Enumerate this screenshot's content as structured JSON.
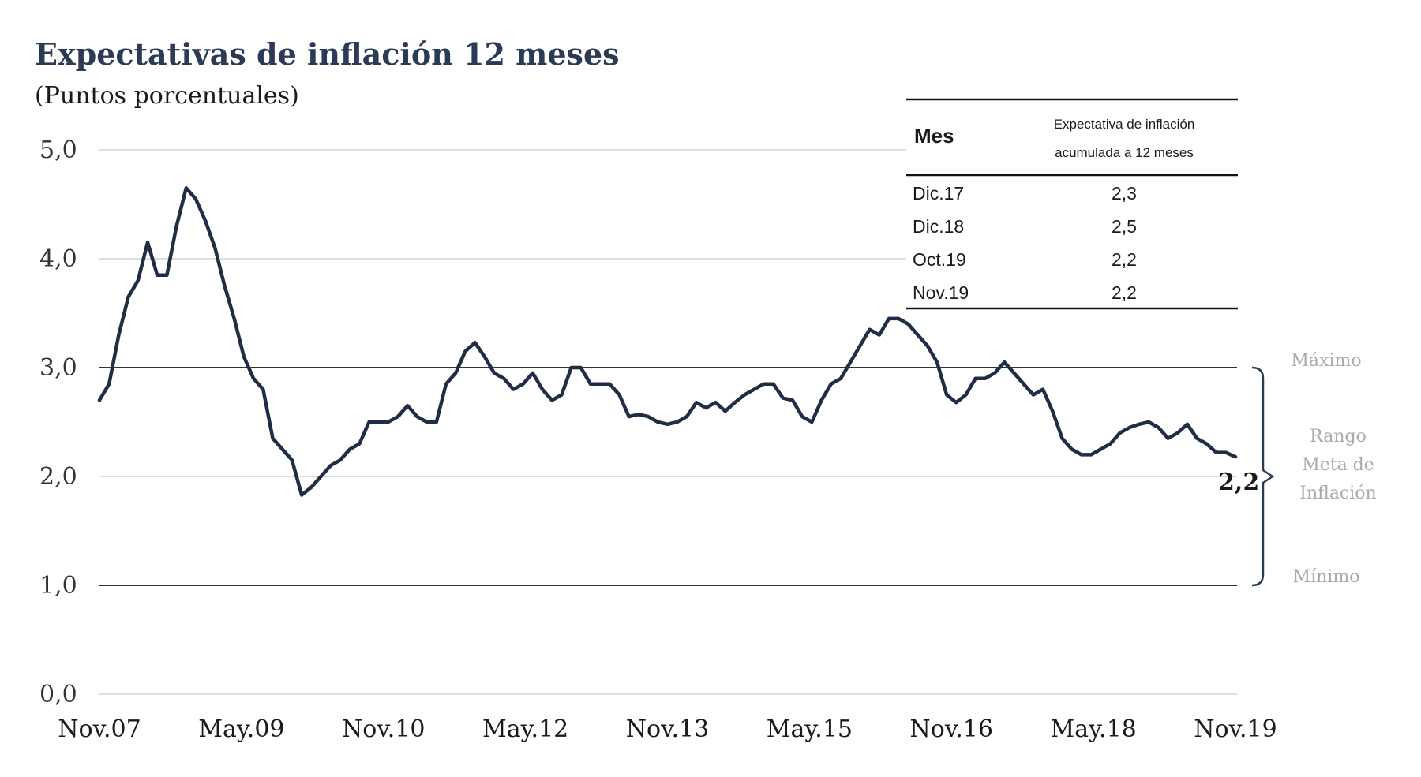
{
  "chart_data": {
    "type": "line",
    "title": "Expectativas de inflación 12 meses",
    "subtitle": "(Puntos porcentuales)",
    "ylim": [
      0,
      5
    ],
    "yticks": [
      "0,0",
      "1,0",
      "2,0",
      "3,0",
      "4,0",
      "5,0"
    ],
    "x_tick_labels": [
      "Nov.07",
      "May.09",
      "Nov.10",
      "May.12",
      "Nov.13",
      "May.15",
      "Nov.16",
      "May.18",
      "Nov.19"
    ],
    "x_start": "Nov.07",
    "x_end": "Nov.19",
    "series": [
      {
        "color": "#1f2d45",
        "values": [
          2.7,
          2.85,
          3.3,
          3.65,
          3.8,
          4.15,
          3.85,
          3.85,
          4.3,
          4.65,
          4.55,
          4.35,
          4.1,
          3.75,
          3.45,
          3.1,
          2.9,
          2.8,
          2.35,
          2.25,
          2.15,
          1.83,
          1.9,
          2.0,
          2.1,
          2.15,
          2.25,
          2.3,
          2.5,
          2.5,
          2.5,
          2.55,
          2.65,
          2.55,
          2.5,
          2.5,
          2.85,
          2.95,
          3.15,
          3.23,
          3.1,
          2.95,
          2.9,
          2.8,
          2.85,
          2.95,
          2.8,
          2.7,
          2.75,
          3.0,
          3.0,
          2.85,
          2.85,
          2.85,
          2.75,
          2.55,
          2.57,
          2.55,
          2.5,
          2.48,
          2.5,
          2.55,
          2.68,
          2.63,
          2.68,
          2.6,
          2.68,
          2.75,
          2.8,
          2.85,
          2.85,
          2.72,
          2.7,
          2.55,
          2.5,
          2.7,
          2.85,
          2.9,
          3.05,
          3.2,
          3.35,
          3.3,
          3.45,
          3.45,
          3.4,
          3.3,
          3.2,
          3.05,
          2.75,
          2.68,
          2.75,
          2.9,
          2.9,
          2.95,
          3.05,
          2.95,
          2.85,
          2.75,
          2.8,
          2.6,
          2.35,
          2.25,
          2.2,
          2.2,
          2.25,
          2.3,
          2.4,
          2.45,
          2.48,
          2.5,
          2.45,
          2.35,
          2.4,
          2.48,
          2.35,
          2.3,
          2.22,
          2.22,
          2.18
        ]
      }
    ],
    "reference_lines": [
      {
        "label": "Máximo",
        "value": 3.0
      },
      {
        "label": "Mínimo",
        "value": 1.0
      }
    ],
    "range_label": [
      "Rango",
      "Meta de",
      "Inflación"
    ],
    "end_value_label": "2,2",
    "grid": true
  },
  "table": {
    "headers": {
      "month": "Mes",
      "expectation_line1": "Expectativa de inflación",
      "expectation_line2": "acumulada a 12 meses"
    },
    "rows": [
      {
        "month": "Dic.17",
        "value": "2,3"
      },
      {
        "month": "Dic.18",
        "value": "2,5"
      },
      {
        "month": "Oct.19",
        "value": "2,2"
      },
      {
        "month": "Nov.19",
        "value": "2,2"
      }
    ]
  }
}
